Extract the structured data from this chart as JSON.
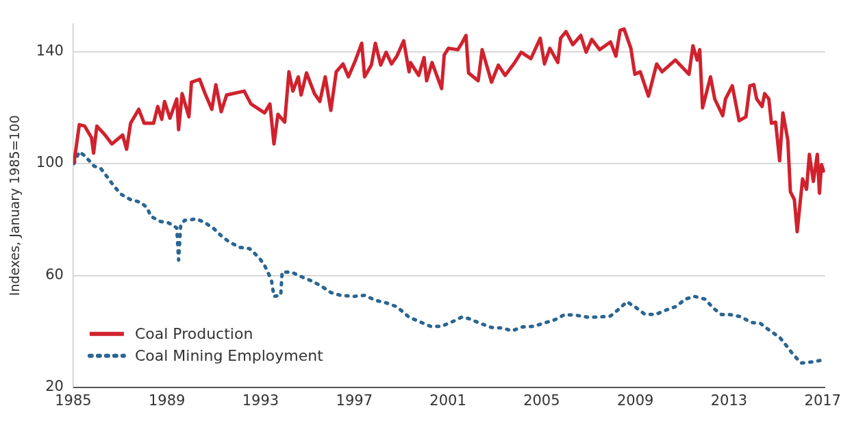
{
  "chart_data": {
    "type": "line",
    "ylabel": "Indexes, January 1985=100",
    "xlim": [
      1985,
      2017.1
    ],
    "xticks": [
      1985,
      1989,
      1993,
      1997,
      2001,
      2005,
      2009,
      2013,
      2017
    ],
    "ylim": [
      20,
      150
    ],
    "yticks": [
      20,
      60,
      100,
      140
    ],
    "grid": "y",
    "legend": "bottom left",
    "marker": "none",
    "series": [
      {
        "name": "Coal Production",
        "color": "#d0222e",
        "line_style": "solid",
        "x": [
          1985.03,
          1985.26,
          1985.49,
          1985.78,
          1985.87,
          1986.01,
          1986.36,
          1986.65,
          1987.11,
          1987.28,
          1987.45,
          1987.8,
          1988.03,
          1988.43,
          1988.61,
          1988.78,
          1988.9,
          1989.13,
          1989.42,
          1989.5,
          1989.65,
          1989.94,
          1990.05,
          1990.4,
          1990.63,
          1990.92,
          1991.09,
          1991.32,
          1991.55,
          1992.3,
          1992.59,
          1993.17,
          1993.4,
          1993.57,
          1993.74,
          1994.03,
          1994.21,
          1994.38,
          1994.61,
          1994.73,
          1994.96,
          1995.3,
          1995.53,
          1995.76,
          1996.0,
          1996.23,
          1996.52,
          1996.75,
          1997.03,
          1997.32,
          1997.44,
          1997.73,
          1997.9,
          1998.13,
          1998.36,
          1998.59,
          1998.82,
          1999.11,
          1999.34,
          1999.4,
          1999.75,
          1999.98,
          2000.09,
          2000.32,
          2000.73,
          2000.84,
          2001.02,
          2001.42,
          2001.59,
          2001.77,
          2001.88,
          2002.29,
          2002.46,
          2002.86,
          2003.15,
          2003.44,
          2003.85,
          2004.13,
          2004.54,
          2004.94,
          2005.12,
          2005.35,
          2005.69,
          2005.81,
          2006.04,
          2006.33,
          2006.67,
          2006.9,
          2007.14,
          2007.48,
          2007.94,
          2008.17,
          2008.35,
          2008.52,
          2008.81,
          2008.98,
          2009.21,
          2009.56,
          2009.91,
          2010.14,
          2010.71,
          2011.29,
          2011.46,
          2011.64,
          2011.75,
          2011.87,
          2012.21,
          2012.39,
          2012.73,
          2012.85,
          2013.14,
          2013.43,
          2013.72,
          2013.89,
          2014.06,
          2014.18,
          2014.41,
          2014.52,
          2014.7,
          2014.81,
          2014.99,
          2015.16,
          2015.3,
          2015.51,
          2015.62,
          2015.79,
          2015.91,
          2016.14,
          2016.31,
          2016.43,
          2016.6,
          2016.77,
          2016.86,
          2016.95,
          2017.06
        ],
        "values": [
          100,
          113.9,
          113.4,
          109.3,
          103.7,
          113.4,
          110.2,
          107,
          110.2,
          105.1,
          114.4,
          119.4,
          114.4,
          114.4,
          120.4,
          115.8,
          122.2,
          116.2,
          123.1,
          112.1,
          125,
          116.7,
          129.1,
          130.1,
          125,
          119.4,
          128.2,
          118.5,
          124.5,
          125.9,
          121.3,
          118.1,
          121.3,
          107,
          117.6,
          114.8,
          132.8,
          125.9,
          131,
          124.5,
          132.4,
          125,
          122.2,
          131,
          119,
          132.8,
          135.6,
          131,
          136.5,
          143,
          131,
          135.2,
          143,
          135.2,
          139.8,
          135.6,
          138.4,
          143.9,
          132.8,
          136.1,
          131.5,
          137.9,
          129.6,
          136.1,
          126.8,
          138.8,
          141.2,
          140.7,
          143,
          145.8,
          132.4,
          129.6,
          140.7,
          129.1,
          135.2,
          131.5,
          136.1,
          139.8,
          137.5,
          144.8,
          135.6,
          141.2,
          136.1,
          144.8,
          147.2,
          142.5,
          145.8,
          139.8,
          144.4,
          140.7,
          143.5,
          138.4,
          147.6,
          148.1,
          141.2,
          131.9,
          132.8,
          124.1,
          135.6,
          132.8,
          137,
          131.9,
          142.1,
          137,
          140.7,
          119.9,
          131,
          123.1,
          117.1,
          123.1,
          127.8,
          115.3,
          116.7,
          127.8,
          128.2,
          123.1,
          120.4,
          125,
          123.1,
          114.4,
          114.8,
          101,
          118.1,
          108.4,
          89.9,
          87.1,
          75.6,
          94.5,
          90.8,
          103.3,
          93.6,
          103.3,
          89.4,
          99.6,
          96.8
        ]
      },
      {
        "name": "Coal Mining Employment",
        "color": "#2a6591",
        "line_style": "dotted",
        "x": [
          1985.03,
          1985.26,
          1985.49,
          1985.89,
          1986.18,
          1986.47,
          1986.76,
          1987.05,
          1987.45,
          1987.86,
          1988.15,
          1988.32,
          1988.72,
          1989.07,
          1989.42,
          1989.5,
          1989.59,
          1989.76,
          1990.28,
          1990.63,
          1990.97,
          1991.32,
          1991.67,
          1992.13,
          1992.53,
          1992.94,
          1993.17,
          1993.46,
          1993.57,
          1993.86,
          1993.92,
          1994.32,
          1994.78,
          1995.19,
          1995.59,
          1996.0,
          1996.4,
          1996.98,
          1997.44,
          1997.9,
          1998.36,
          1998.82,
          1999.34,
          1999.86,
          2000.26,
          2000.73,
          2001.25,
          2001.59,
          2001.88,
          2002.4,
          2002.86,
          2003.33,
          2003.73,
          2004.19,
          2004.65,
          2005.12,
          2005.58,
          2005.98,
          2006.44,
          2006.96,
          2007.42,
          2007.94,
          2008.29,
          2008.64,
          2008.98,
          2009.39,
          2009.85,
          2010.31,
          2010.77,
          2011.12,
          2011.52,
          2011.98,
          2012.33,
          2012.68,
          2013.02,
          2013.48,
          2013.95,
          2014.35,
          2014.75,
          2015.16,
          2015.45,
          2015.74,
          2016.08,
          2016.6,
          2017.0
        ],
        "values": [
          100,
          104.2,
          102.8,
          99.1,
          98.2,
          95,
          91.7,
          89,
          87.1,
          86.2,
          84.3,
          81.1,
          79.3,
          78.8,
          77,
          65.5,
          78,
          79.7,
          80.2,
          78.8,
          77,
          74.2,
          71.9,
          70,
          69.6,
          66.3,
          63.6,
          58.5,
          52.5,
          52.9,
          61.2,
          61.2,
          59.4,
          58,
          56.2,
          53.9,
          52.9,
          52.5,
          52.9,
          51.1,
          50.2,
          48.8,
          45.1,
          43.2,
          41.8,
          41.8,
          43.7,
          45.1,
          44.6,
          42.8,
          41.4,
          41.2,
          40.2,
          41.6,
          41.8,
          43,
          44.2,
          46,
          45.8,
          45.1,
          45.1,
          45.5,
          47.9,
          50.6,
          48.8,
          46.2,
          46,
          47.6,
          49,
          51.5,
          52.5,
          51.5,
          48.3,
          46,
          46,
          45.3,
          43.2,
          42.8,
          40.2,
          37.9,
          34.9,
          31.7,
          28.7,
          29.1,
          29.8
        ]
      }
    ]
  }
}
